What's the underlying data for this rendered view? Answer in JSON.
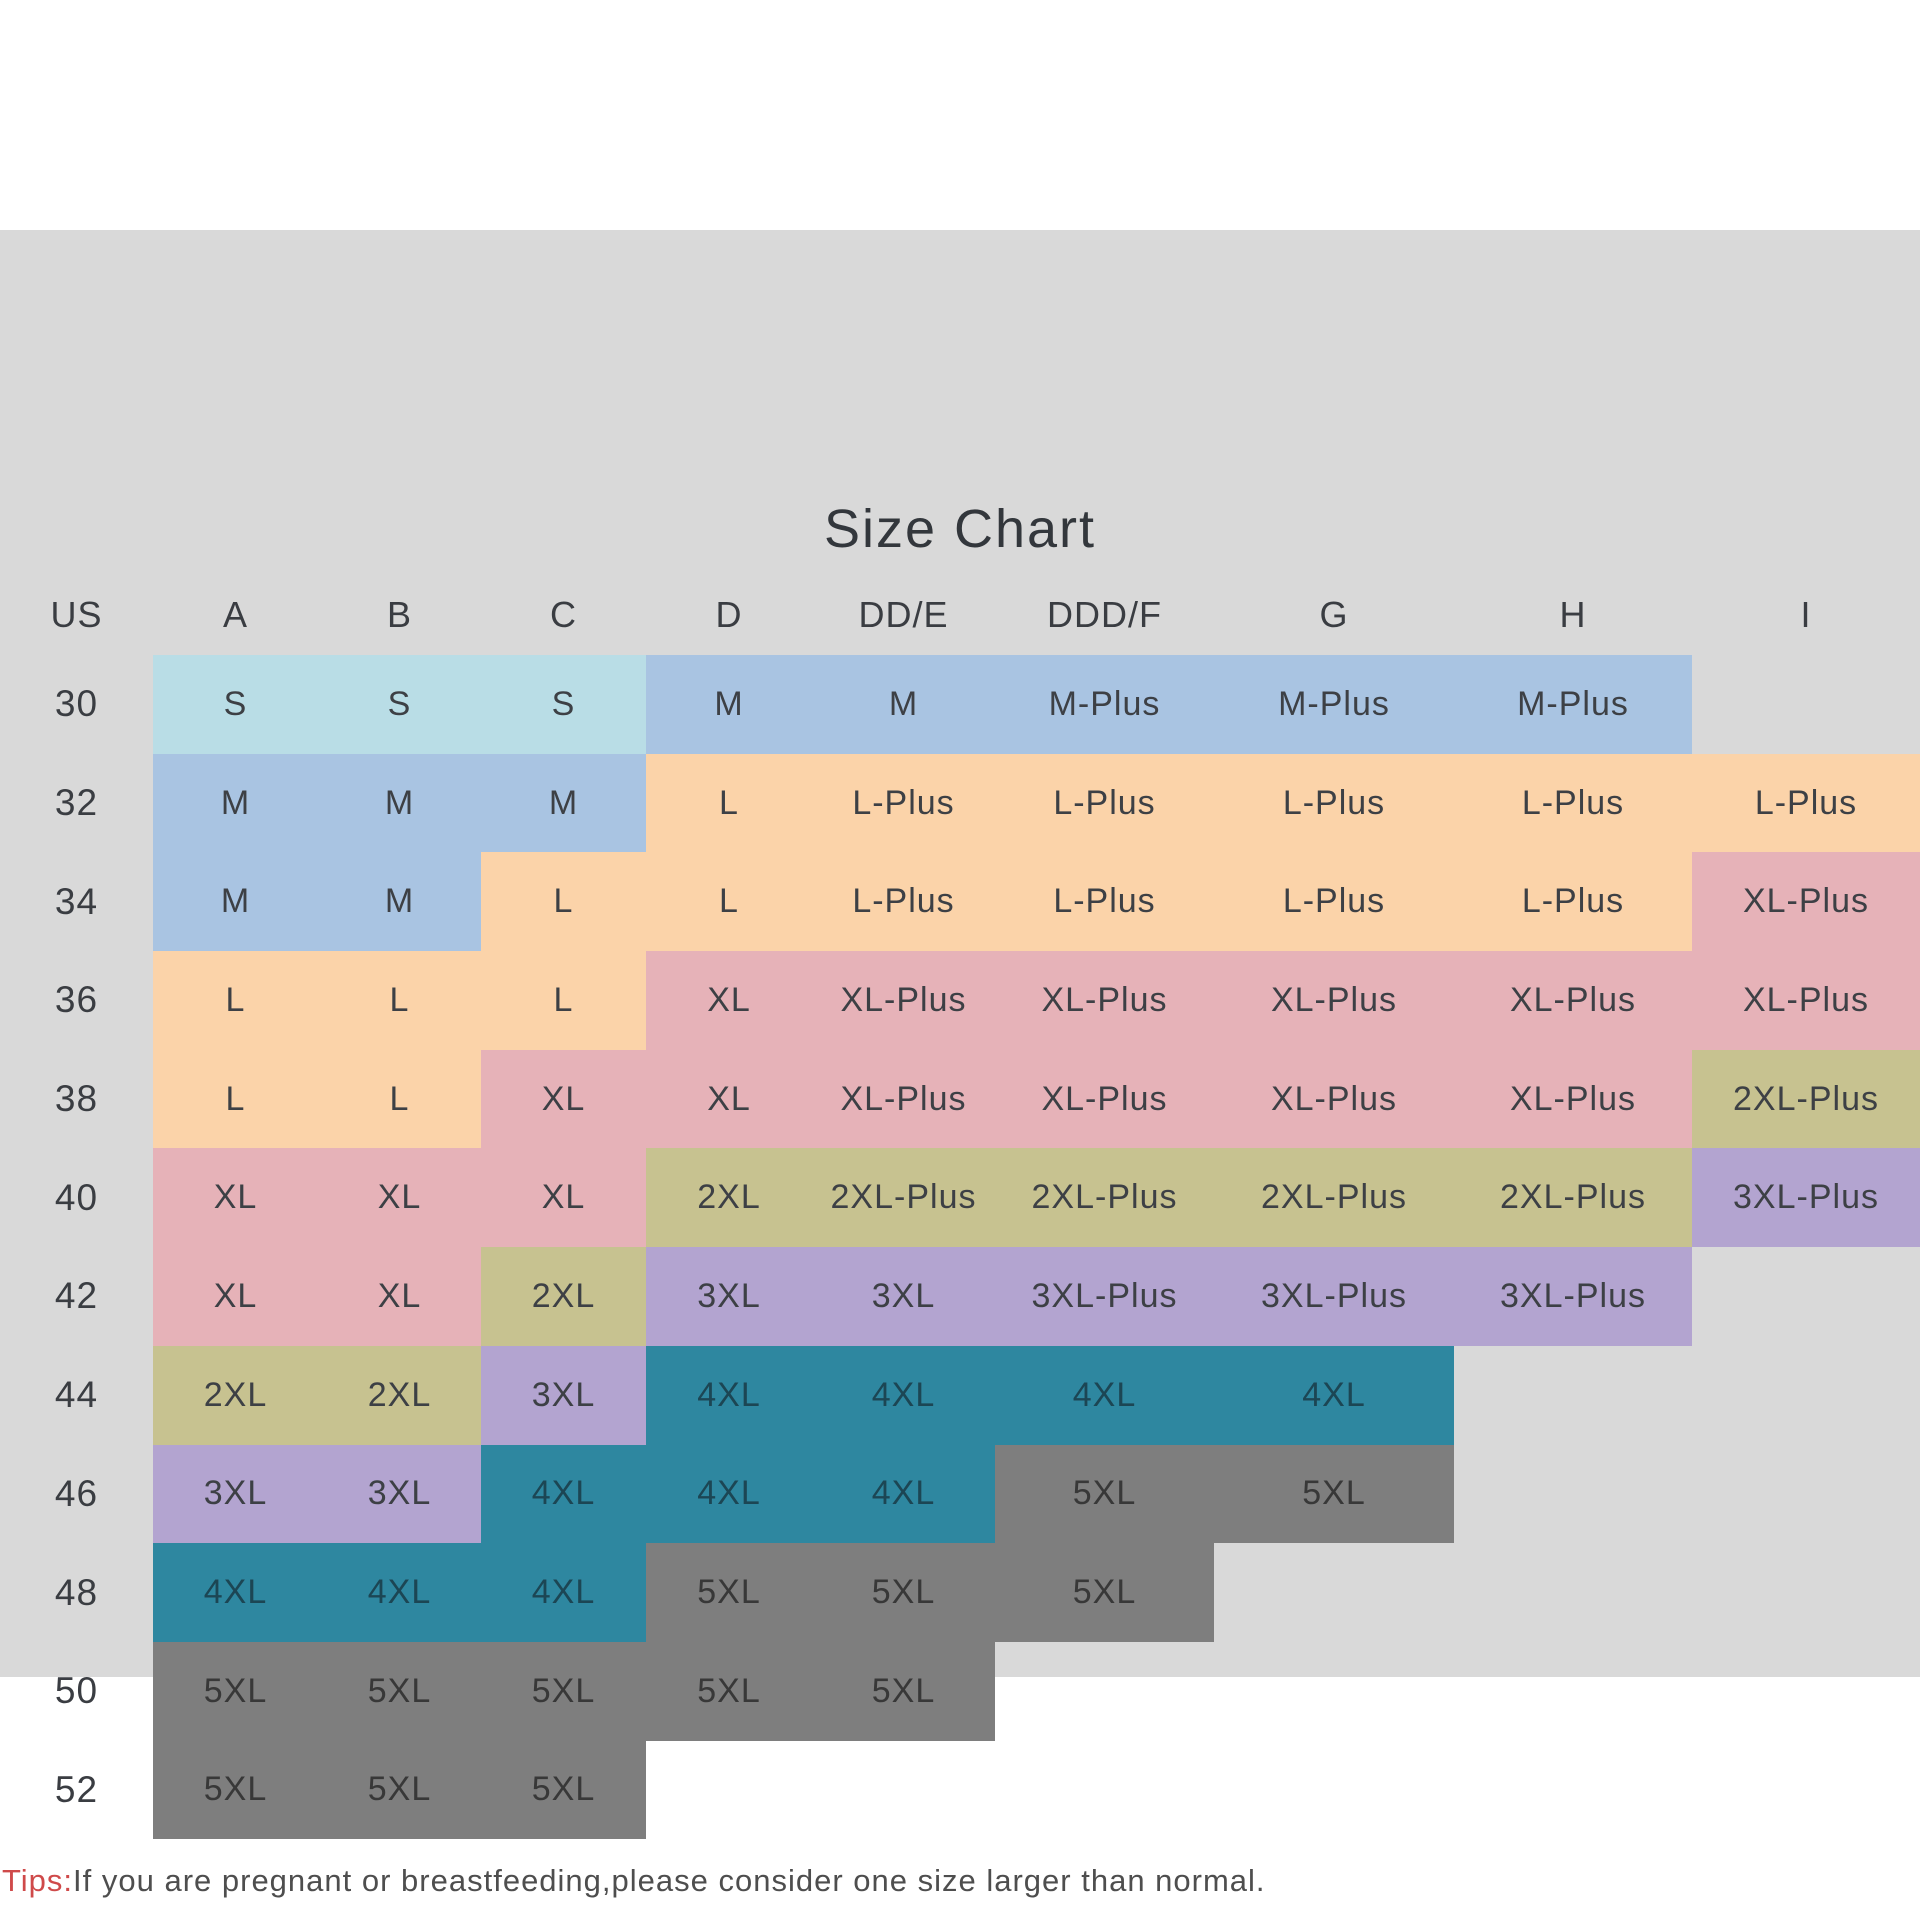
{
  "page": {
    "background": "#ffffff",
    "panel_background": "#d9d9d9"
  },
  "title": "Size Chart",
  "chart_data": {
    "type": "table",
    "title": "Size Chart",
    "columns": [
      "US",
      "A",
      "B",
      "C",
      "D",
      "DD/E",
      "DDD/F",
      "G",
      "H",
      "I"
    ],
    "rows": [
      {
        "us": "30",
        "cells": [
          "S",
          "S",
          "S",
          "M",
          "M",
          "M-Plus",
          "M-Plus",
          "M-Plus",
          ""
        ]
      },
      {
        "us": "32",
        "cells": [
          "M",
          "M",
          "M",
          "L",
          "L-Plus",
          "L-Plus",
          "L-Plus",
          "L-Plus",
          "L-Plus"
        ]
      },
      {
        "us": "34",
        "cells": [
          "M",
          "M",
          "L",
          "L",
          "L-Plus",
          "L-Plus",
          "L-Plus",
          "L-Plus",
          "XL-Plus"
        ]
      },
      {
        "us": "36",
        "cells": [
          "L",
          "L",
          "L",
          "XL",
          "XL-Plus",
          "XL-Plus",
          "XL-Plus",
          "XL-Plus",
          "XL-Plus"
        ]
      },
      {
        "us": "38",
        "cells": [
          "L",
          "L",
          "XL",
          "XL",
          "XL-Plus",
          "XL-Plus",
          "XL-Plus",
          "XL-Plus",
          "2XL-Plus"
        ]
      },
      {
        "us": "40",
        "cells": [
          "XL",
          "XL",
          "XL",
          "2XL",
          "2XL-Plus",
          "2XL-Plus",
          "2XL-Plus",
          "2XL-Plus",
          "3XL-Plus"
        ]
      },
      {
        "us": "42",
        "cells": [
          "XL",
          "XL",
          "2XL",
          "3XL",
          "3XL",
          "3XL-Plus",
          "3XL-Plus",
          "3XL-Plus",
          ""
        ]
      },
      {
        "us": "44",
        "cells": [
          "2XL",
          "2XL",
          "3XL",
          "4XL",
          "4XL",
          "4XL",
          "4XL",
          "",
          ""
        ]
      },
      {
        "us": "46",
        "cells": [
          "3XL",
          "3XL",
          "4XL",
          "4XL",
          "4XL",
          "5XL",
          "5XL",
          "",
          ""
        ]
      },
      {
        "us": "48",
        "cells": [
          "4XL",
          "4XL",
          "4XL",
          "5XL",
          "5XL",
          "5XL",
          "",
          "",
          ""
        ]
      },
      {
        "us": "50",
        "cells": [
          "5XL",
          "5XL",
          "5XL",
          "5XL",
          "5XL",
          "",
          "",
          "",
          ""
        ]
      },
      {
        "us": "52",
        "cells": [
          "5XL",
          "5XL",
          "5XL",
          "",
          "",
          "",
          "",
          "",
          ""
        ]
      }
    ]
  },
  "size_colors": {
    "S": "#b9dde6",
    "M": "#a9c4e2",
    "L": "#fbd3a9",
    "XL": "#e6b2b8",
    "2XL": "#c7c290",
    "3XL": "#b3a4d0",
    "4XL": "#2e87a0",
    "5XL": "#7e7e7e"
  },
  "tips": {
    "label": "Tips:",
    "text": "If you are pregnant or breastfeeding,please consider one size larger than normal.",
    "label_color": "#cf4a4a"
  }
}
